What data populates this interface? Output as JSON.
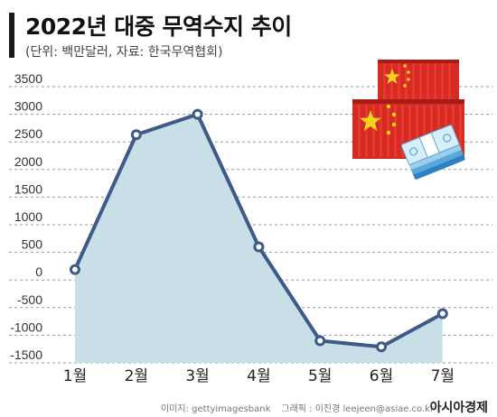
{
  "header": {
    "title": "2022년 대중 무역수지 추이",
    "subtitle": "(단위: 백만달러, 자료: 한국무역협회)"
  },
  "chart_data": {
    "type": "area",
    "categories": [
      "1월",
      "2월",
      "3월",
      "4월",
      "5월",
      "6월",
      "7월"
    ],
    "values": [
      190,
      2630,
      3000,
      600,
      -1100,
      -1210,
      -610
    ],
    "yticks": [
      3500,
      3000,
      2500,
      2000,
      1500,
      1000,
      500,
      0,
      -500,
      -1000,
      -1500
    ],
    "ylim": [
      -1500,
      3500
    ],
    "grid": true,
    "colors": {
      "line": "#3d5a8a",
      "fill": "#c9dfe8",
      "grid": "#9a9a9a"
    }
  },
  "illustration": {
    "icon": "china-flag-containers-and-money-icon"
  },
  "footer": {
    "image_credit": "이미지: gettyimagesbank",
    "graphic_credit": "그래픽 : 이진경 leejeen@asiae.co.kr",
    "brand": "아시아경제"
  }
}
